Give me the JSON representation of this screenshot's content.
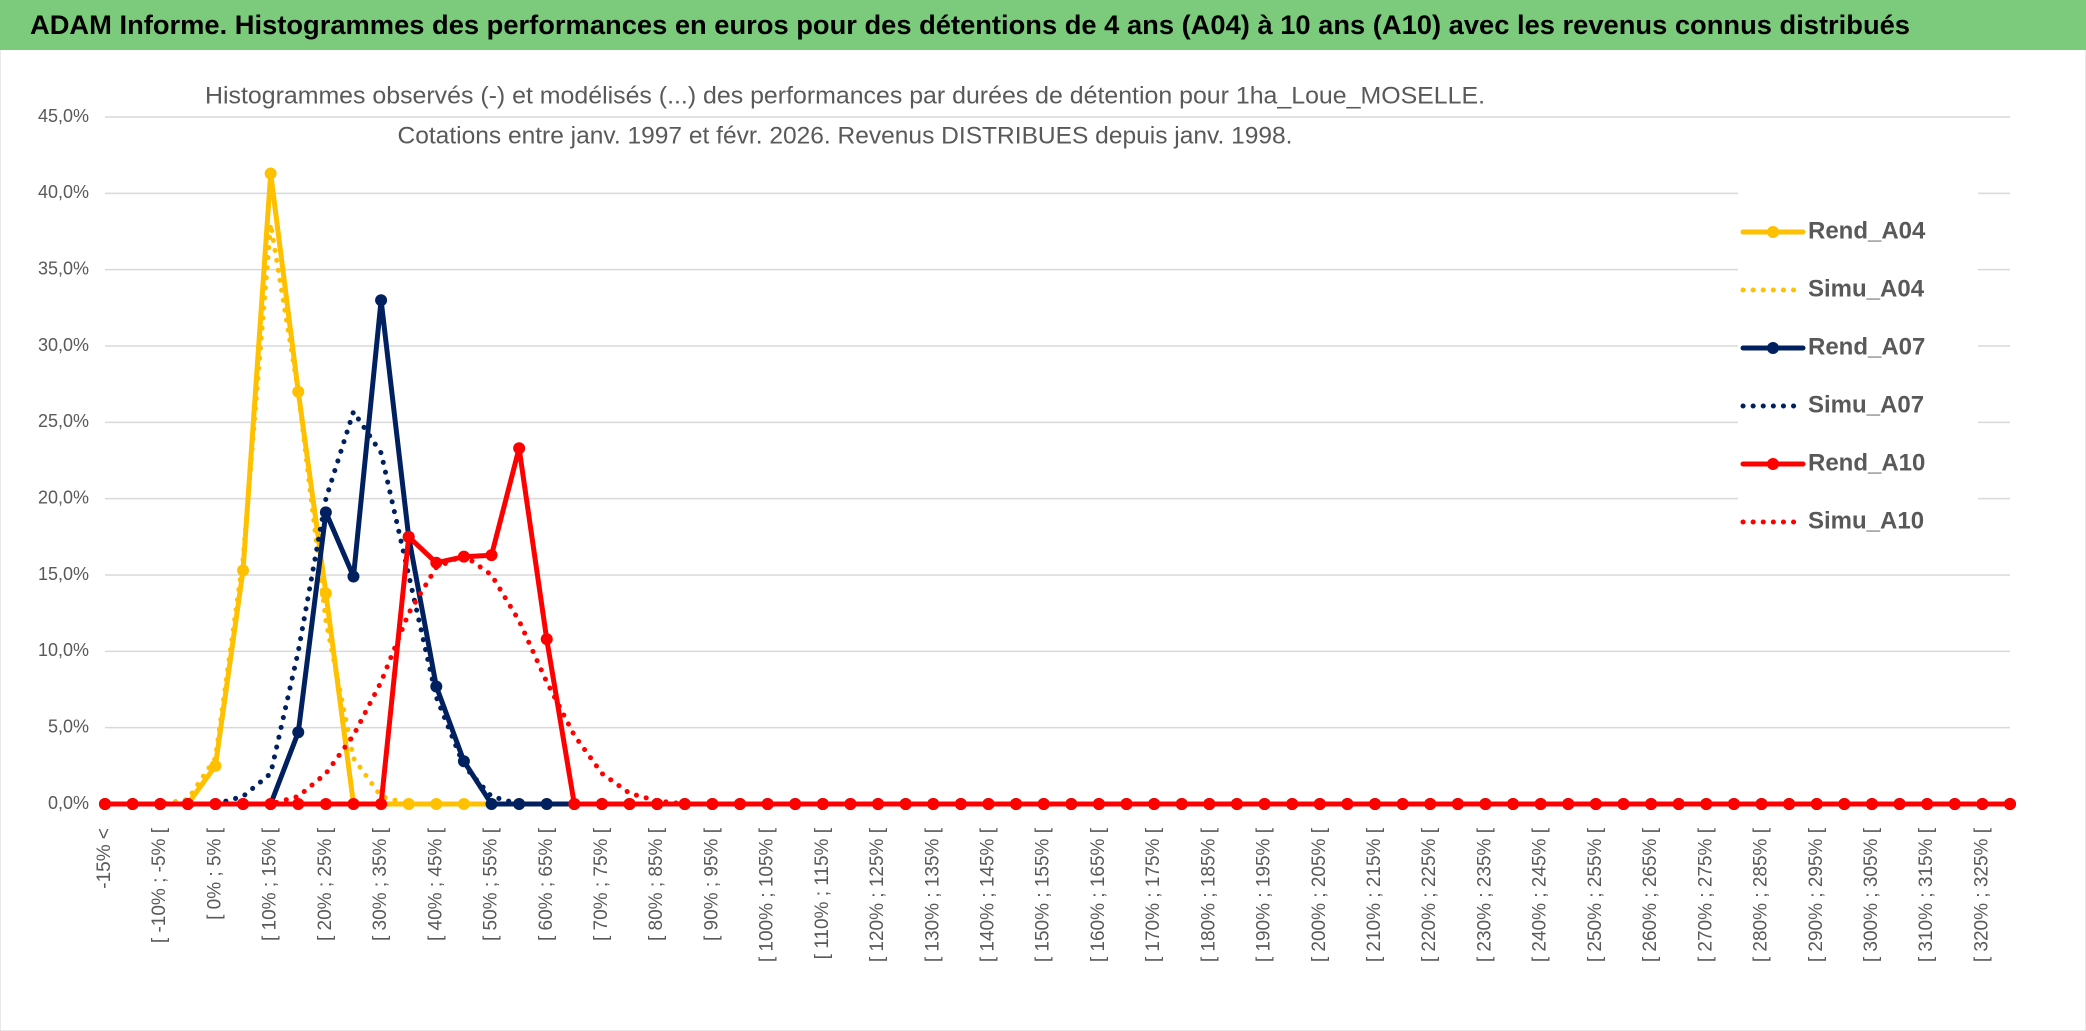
{
  "chart_data": {
    "type": "line",
    "title": "ADAM Informe. Histogrammes des performances en euros pour des détentions de 4 ans (A04) à 10 ans (A10) avec les revenus connus distribués",
    "subtitle": [
      "Histogrammes observés (-) et modélisés (...) des performances par durées de détention pour 1ha_Loue_MOSELLE.",
      "Cotations entre janv. 1997 et févr. 2026. Revenus DISTRIBUES depuis janv. 1998."
    ],
    "categories": [
      "-15% <",
      null,
      "[ -10% ; -5% [",
      null,
      "[ 0% ; 5% [",
      null,
      "[ 10% ; 15% [",
      null,
      "[ 20% ; 25% [",
      null,
      "[ 30% ; 35% [",
      null,
      "[ 40% ; 45% [",
      null,
      "[ 50% ; 55% [",
      null,
      "[ 60% ; 65% [",
      null,
      "[ 70% ; 75% [",
      null,
      "[ 80% ; 85% [",
      null,
      "[ 90% ; 95% [",
      null,
      "[ 100% ; 105% [",
      null,
      "[ 110% ; 115% [",
      null,
      "[ 120% ; 125% [",
      null,
      "[ 130% ; 135% [",
      null,
      "[ 140% ; 145% [",
      null,
      "[ 150% ; 155% [",
      null,
      "[ 160% ; 165% [",
      null,
      "[ 170% ; 175% [",
      null,
      "[ 180% ; 185% [",
      null,
      "[ 190% ; 195% [",
      null,
      "[ 200% ; 205% [",
      null,
      "[ 210% ; 215% [",
      null,
      "[ 220% ; 225% [",
      null,
      "[ 230% ; 235% [",
      null,
      "[ 240% ; 245% [",
      null,
      "[ 250% ; 255% [",
      null,
      "[ 260% ; 265% [",
      null,
      "[ 270% ; 275% [",
      null,
      "[ 280% ; 285% [",
      null,
      "[ 290% ; 295% [",
      null,
      "[ 300% ; 305% [",
      null,
      "[ 310% ; 315% [",
      null,
      "[ 320% ; 325% [",
      null
    ],
    "series": [
      {
        "name": "Rend_A04",
        "color": "#ffc000",
        "style": "solid",
        "values": [
          0,
          0,
          0,
          0,
          2.5,
          15.3,
          41.3,
          27,
          13.8,
          0,
          0,
          0,
          0,
          0,
          0,
          0,
          0,
          0,
          0,
          0,
          0,
          0,
          0,
          0,
          0,
          0,
          0,
          0,
          0,
          0,
          0,
          0,
          0,
          0,
          0,
          0,
          0,
          0,
          0,
          0,
          0,
          0,
          0,
          0,
          0,
          0,
          0,
          0,
          0,
          0,
          0,
          0,
          0,
          0,
          0,
          0,
          0,
          0,
          0,
          0,
          0,
          0,
          0,
          0,
          0,
          0,
          0,
          0,
          0,
          0
        ]
      },
      {
        "name": "Simu_A04",
        "color": "#ffc000",
        "style": "dotted",
        "values": [
          0,
          0,
          0,
          0.3,
          3,
          16,
          38,
          27,
          12,
          3,
          0.5,
          0,
          0,
          0,
          0,
          0,
          0,
          0,
          0,
          0,
          0,
          0,
          0,
          0,
          0,
          0,
          0,
          0,
          0,
          0,
          0,
          0,
          0,
          0,
          0,
          0,
          0,
          0,
          0,
          0,
          0,
          0,
          0,
          0,
          0,
          0,
          0,
          0,
          0,
          0,
          0,
          0,
          0,
          0,
          0,
          0,
          0,
          0,
          0,
          0,
          0,
          0,
          0,
          0,
          0,
          0,
          0,
          0,
          0,
          0
        ]
      },
      {
        "name": "Rend_A07",
        "color": "#002060",
        "style": "solid",
        "values": [
          0,
          0,
          0,
          0,
          0,
          0,
          0,
          4.7,
          19.1,
          14.9,
          33,
          17.5,
          7.7,
          2.8,
          0,
          0,
          0,
          0,
          0,
          0,
          0,
          0,
          0,
          0,
          0,
          0,
          0,
          0,
          0,
          0,
          0,
          0,
          0,
          0,
          0,
          0,
          0,
          0,
          0,
          0,
          0,
          0,
          0,
          0,
          0,
          0,
          0,
          0,
          0,
          0,
          0,
          0,
          0,
          0,
          0,
          0,
          0,
          0,
          0,
          0,
          0,
          0,
          0,
          0,
          0,
          0,
          0,
          0,
          0,
          0
        ]
      },
      {
        "name": "Simu_A07",
        "color": "#002060",
        "style": "dotted",
        "values": [
          0,
          0,
          0,
          0,
          0,
          0.5,
          2,
          10,
          20,
          25.7,
          23,
          15,
          7,
          2.5,
          0.5,
          0,
          0,
          0,
          0,
          0,
          0,
          0,
          0,
          0,
          0,
          0,
          0,
          0,
          0,
          0,
          0,
          0,
          0,
          0,
          0,
          0,
          0,
          0,
          0,
          0,
          0,
          0,
          0,
          0,
          0,
          0,
          0,
          0,
          0,
          0,
          0,
          0,
          0,
          0,
          0,
          0,
          0,
          0,
          0,
          0,
          0,
          0,
          0,
          0,
          0,
          0,
          0,
          0,
          0,
          0
        ]
      },
      {
        "name": "Rend_A10",
        "color": "#ff0000",
        "style": "solid",
        "values": [
          0,
          0,
          0,
          0,
          0,
          0,
          0,
          0,
          0,
          0,
          0,
          17.5,
          15.8,
          16.2,
          16.3,
          23.3,
          10.8,
          0,
          0,
          0,
          0,
          0,
          0,
          0,
          0,
          0,
          0,
          0,
          0,
          0,
          0,
          0,
          0,
          0,
          0,
          0,
          0,
          0,
          0,
          0,
          0,
          0,
          0,
          0,
          0,
          0,
          0,
          0,
          0,
          0,
          0,
          0,
          0,
          0,
          0,
          0,
          0,
          0,
          0,
          0,
          0,
          0,
          0,
          0,
          0,
          0,
          0,
          0,
          0,
          0
        ]
      },
      {
        "name": "Simu_A10",
        "color": "#ff0000",
        "style": "dotted",
        "values": [
          0,
          0,
          0,
          0,
          0,
          0,
          0,
          0.5,
          2,
          4.5,
          8,
          12.5,
          15.5,
          16.3,
          15,
          12,
          8,
          4.5,
          2,
          0.7,
          0.2,
          0,
          0,
          0,
          0,
          0,
          0,
          0,
          0,
          0,
          0,
          0,
          0,
          0,
          0,
          0,
          0,
          0,
          0,
          0,
          0,
          0,
          0,
          0,
          0,
          0,
          0,
          0,
          0,
          0,
          0,
          0,
          0,
          0,
          0,
          0,
          0,
          0,
          0,
          0,
          0,
          0,
          0,
          0,
          0,
          0,
          0,
          0,
          0,
          0
        ]
      }
    ],
    "ylim": [
      0,
      45
    ],
    "yticks": [
      {
        "value": 0,
        "label": "0,0%"
      },
      {
        "value": 5,
        "label": "5,0%"
      },
      {
        "value": 10,
        "label": "10,0%"
      },
      {
        "value": 15,
        "label": "15,0%"
      },
      {
        "value": 20,
        "label": "20,0%"
      },
      {
        "value": 25,
        "label": "25,0%"
      },
      {
        "value": 30,
        "label": "30,0%"
      },
      {
        "value": 35,
        "label": "35,0%"
      },
      {
        "value": 40,
        "label": "40,0%"
      },
      {
        "value": 45,
        "label": "45,0%"
      }
    ],
    "grid": true,
    "legend": "right"
  }
}
